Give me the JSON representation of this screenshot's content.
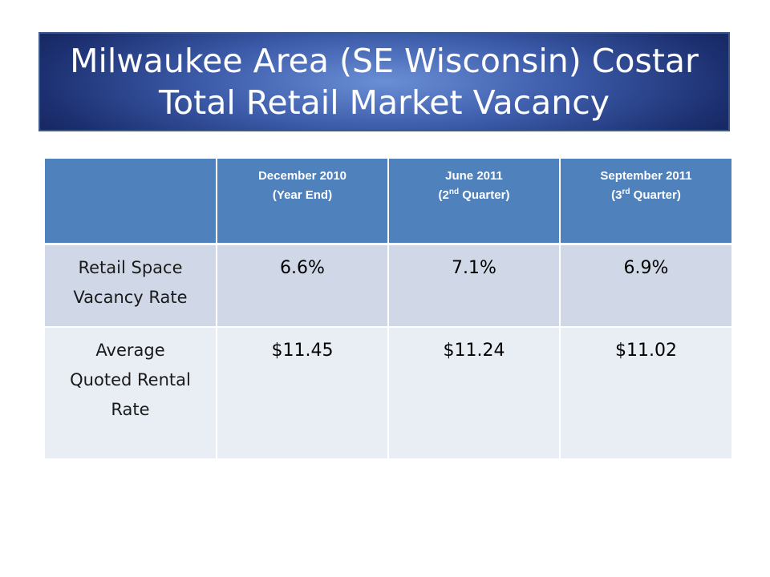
{
  "title": {
    "line1": "Milwaukee Area (SE Wisconsin) Costar",
    "line2": "Total Retail Market Vacancy"
  },
  "table": {
    "columns": [
      {
        "line1": "December 2010",
        "line2_pre": "(Year End)",
        "sup": "",
        "line2_post": ""
      },
      {
        "line1": "June 2011",
        "line2_pre": "(2",
        "sup": "nd",
        "line2_post": " Quarter)"
      },
      {
        "line1": "September 2011",
        "line2_pre": "(3",
        "sup": "rd",
        "line2_post": " Quarter)"
      }
    ],
    "rows": [
      {
        "label_lines": [
          "Retail Space",
          "Vacancy Rate"
        ],
        "values": [
          "6.6%",
          "7.1%",
          "6.9%"
        ]
      },
      {
        "label_lines": [
          "Average",
          "Quoted Rental",
          "Rate"
        ],
        "values": [
          "$11.45",
          "$11.24",
          "$11.02"
        ]
      }
    ]
  }
}
